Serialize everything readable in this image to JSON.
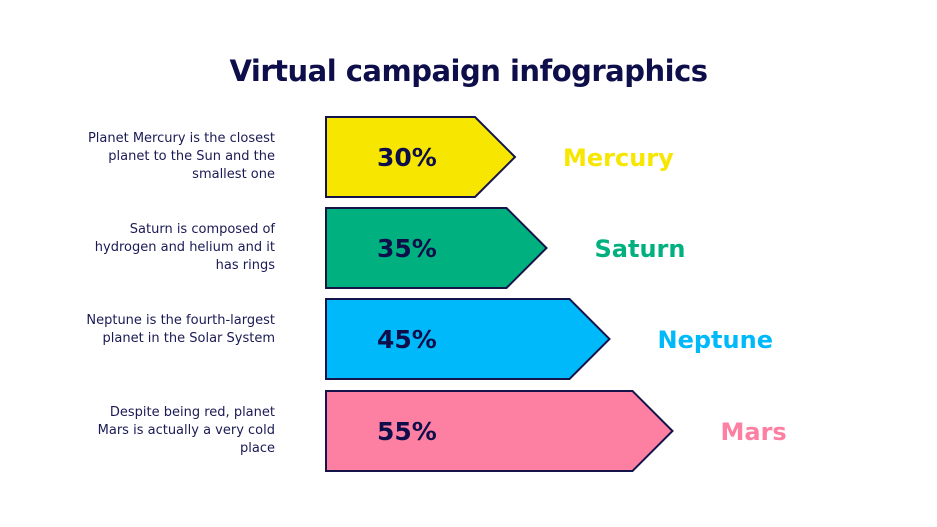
{
  "title": "Virtual campaign infographics",
  "chart_data": {
    "type": "bar",
    "orientation": "horizontal",
    "title": "Virtual campaign infographics",
    "categories": [
      "Mercury",
      "Saturn",
      "Neptune",
      "Mars"
    ],
    "values": [
      30,
      35,
      45,
      55
    ],
    "value_labels": [
      "30%",
      "35%",
      "45%",
      "55%"
    ],
    "colors": [
      "#f7e600",
      "#00b07f",
      "#00b9fb",
      "#fd80a3"
    ],
    "descriptions": [
      "Planet Mercury is the closest planet to the Sun and the smallest one",
      "Saturn is composed of hydrogen and helium and it has rings",
      "Neptune is the fourth-largest planet in the Solar System",
      "Despite being red, planet Mars is actually a very cold place"
    ],
    "grid": false,
    "unit": "%"
  },
  "colors": {
    "text": "#0e0e4a",
    "outline": "#14144a"
  }
}
